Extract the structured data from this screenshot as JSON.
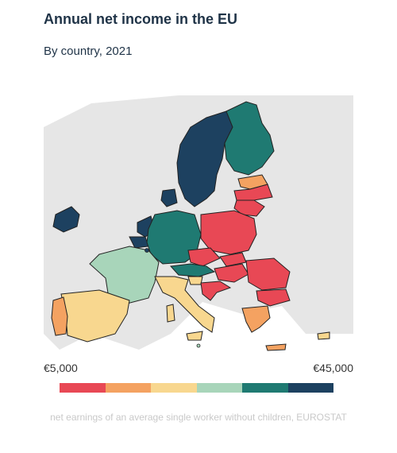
{
  "title": "Annual net income in the EU",
  "subtitle": "By country, 2021",
  "legend": {
    "min_label": "€5,000",
    "max_label": "€45,000",
    "colors": [
      "#e84855",
      "#f4a261",
      "#f8d78f",
      "#a8d5ba",
      "#1f7a72",
      "#1d4160"
    ]
  },
  "note": "net earnings of an average single worker without children, EUROSTAT",
  "map_data": {
    "type": "choropleth",
    "region": "EU",
    "classes": [
      {
        "color": "#1d4160",
        "countries": [
          "Sweden",
          "Ireland",
          "Netherlands",
          "Denmark",
          "Luxembourg",
          "Belgium"
        ]
      },
      {
        "color": "#1f7a72",
        "countries": [
          "Finland",
          "Germany",
          "Austria"
        ]
      },
      {
        "color": "#a8d5ba",
        "countries": [
          "France",
          "Malta"
        ]
      },
      {
        "color": "#f8d78f",
        "countries": [
          "Spain",
          "Italy",
          "Slovenia",
          "Cyprus"
        ]
      },
      {
        "color": "#f4a261",
        "countries": [
          "Portugal",
          "Latvia",
          "Greece"
        ]
      },
      {
        "color": "#e84855",
        "countries": [
          "Poland",
          "Czechia",
          "Slovakia",
          "Hungary",
          "Romania",
          "Bulgaria",
          "Croatia",
          "Lithuania",
          "Estonia"
        ]
      }
    ],
    "non_eu_color": "#e6e6e6"
  }
}
